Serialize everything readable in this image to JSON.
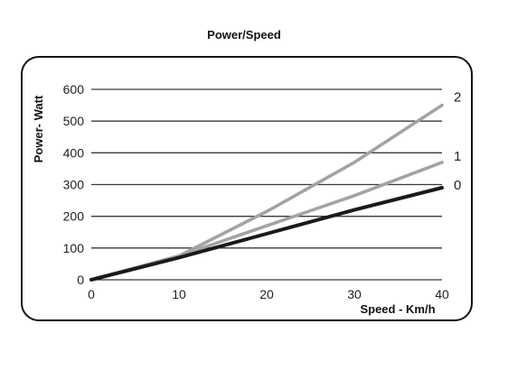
{
  "chart_data": {
    "type": "line",
    "title": "Power/Speed",
    "xlabel": "Speed - Km/h",
    "ylabel": "Power- Watt",
    "xlim": [
      0,
      40
    ],
    "ylim": [
      0,
      600
    ],
    "x_ticks": [
      "0",
      "10",
      "20",
      "30",
      "40"
    ],
    "y_ticks": [
      "0",
      "100",
      "200",
      "300",
      "400",
      "500",
      "600"
    ],
    "grid": "horizontal",
    "legend": "none; series labels at right end of lines",
    "series": [
      {
        "name": "2",
        "color": "#a3a3a3",
        "x": [
          0,
          10,
          20,
          30,
          40
        ],
        "y": [
          0,
          75,
          215,
          370,
          550
        ]
      },
      {
        "name": "1",
        "color": "#a3a3a3",
        "x": [
          0,
          10,
          20,
          30,
          40
        ],
        "y": [
          0,
          75,
          170,
          265,
          370
        ]
      },
      {
        "name": "0",
        "color": "#1a1a1a",
        "x": [
          0,
          10,
          20,
          30,
          40
        ],
        "y": [
          0,
          70,
          145,
          220,
          290
        ]
      }
    ]
  }
}
